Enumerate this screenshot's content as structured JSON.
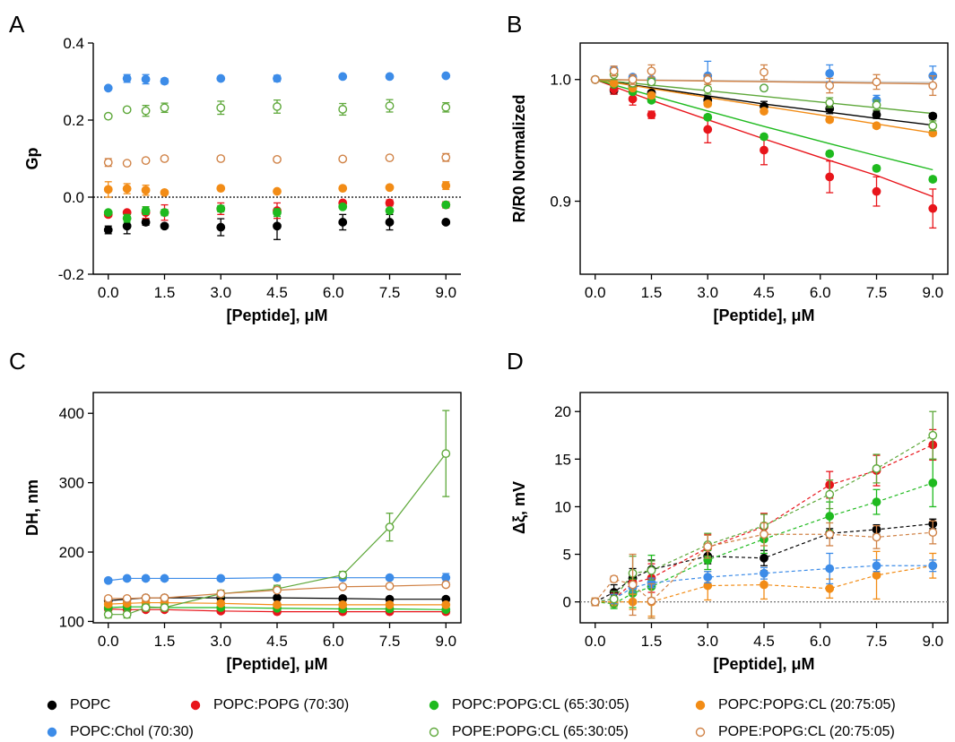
{
  "legend": [
    {
      "label": "POPC",
      "color": "#000000",
      "filled": true
    },
    {
      "label": "POPC:POPG (70:30)",
      "color": "#e8151b",
      "filled": true
    },
    {
      "label": "POPC:POPG:CL (65:30:05)",
      "color": "#1fba1f",
      "filled": true
    },
    {
      "label": "POPC:POPG:CL (20:75:05)",
      "color": "#f28c16",
      "filled": true
    },
    {
      "label": "POPC:Chol (70:30)",
      "color": "#3d8ce8",
      "filled": true
    },
    {
      "label": "POPE:POPG:CL (65:30:05)",
      "color": "#5ea83a",
      "filled": false
    },
    {
      "label": "POPE:POPG:CL (20:75:05)",
      "color": "#d08246",
      "filled": false
    }
  ],
  "chart_data": [
    {
      "panel": "A",
      "type": "scatter",
      "xlabel": "[Peptide], μM",
      "ylabel": "Gp",
      "x": [
        0.0,
        0.5,
        1.0,
        1.5,
        3.0,
        4.5,
        6.25,
        7.5,
        9.0
      ],
      "xticks": [
        "0.0",
        "1.5",
        "3.0",
        "4.5",
        "6.0",
        "7.5",
        "9.0"
      ],
      "xtick_values": [
        0.0,
        1.5,
        3.0,
        4.5,
        6.0,
        7.5,
        9.0
      ],
      "yticks": [
        "-0.2",
        "0.0",
        "0.2",
        "0.4"
      ],
      "ytick_values": [
        -0.2,
        0.0,
        0.2,
        0.4
      ],
      "xlim": [
        -0.4,
        9.4
      ],
      "ylim": [
        -0.2,
        0.4
      ],
      "reference_line": 0.0,
      "connect": "none",
      "series": [
        {
          "legend": 0,
          "y": [
            -0.085,
            -0.075,
            -0.065,
            -0.075,
            -0.078,
            -0.075,
            -0.065,
            -0.065,
            -0.065
          ],
          "err": [
            0.01,
            0.02,
            0.008,
            0.006,
            0.022,
            0.035,
            0.02,
            0.02,
            0.005
          ]
        },
        {
          "legend": 1,
          "y": [
            -0.045,
            -0.04,
            -0.04,
            -0.04,
            -0.03,
            -0.035,
            -0.015,
            -0.015,
            -0.02
          ],
          "err": [
            0.005,
            0.005,
            0.015,
            0.02,
            0.015,
            0.02,
            0.005,
            0.008,
            0.008
          ]
        },
        {
          "legend": 2,
          "y": [
            -0.04,
            -0.055,
            -0.035,
            -0.04,
            -0.03,
            -0.04,
            -0.025,
            -0.035,
            -0.02
          ],
          "err": [
            0.003,
            0.01,
            0.01,
            0.008,
            0.008,
            0.01,
            0.005,
            0.005,
            0.005
          ]
        },
        {
          "legend": 3,
          "y": [
            0.02,
            0.022,
            0.018,
            0.012,
            0.023,
            0.015,
            0.023,
            0.025,
            0.03
          ],
          "err": [
            0.02,
            0.013,
            0.013,
            0.005,
            0.004,
            0.004,
            0.004,
            0.004,
            0.01
          ]
        },
        {
          "legend": 4,
          "y": [
            0.283,
            0.308,
            0.306,
            0.301,
            0.308,
            0.308,
            0.313,
            0.313,
            0.315
          ],
          "err": [
            0.004,
            0.01,
            0.012,
            0.007,
            0.004,
            0.008,
            0.004,
            0.004,
            0.004
          ]
        },
        {
          "legend": 5,
          "y": [
            0.21,
            0.227,
            0.224,
            0.232,
            0.232,
            0.235,
            0.228,
            0.237,
            0.233
          ],
          "err": [
            0.004,
            0.004,
            0.014,
            0.012,
            0.017,
            0.017,
            0.015,
            0.016,
            0.012
          ]
        },
        {
          "legend": 6,
          "y": [
            0.09,
            0.088,
            0.095,
            0.1,
            0.1,
            0.098,
            0.099,
            0.102,
            0.103
          ],
          "err": [
            0.01,
            0.004,
            0.004,
            0.004,
            0.004,
            0.004,
            0.004,
            0.004,
            0.01
          ]
        }
      ]
    },
    {
      "panel": "B",
      "type": "line",
      "xlabel": "[Peptide], μM",
      "ylabel": "R/R0 Normalized",
      "x": [
        0.0,
        0.5,
        1.0,
        1.5,
        3.0,
        4.5,
        6.25,
        7.5,
        9.0
      ],
      "xticks": [
        "0.0",
        "1.5",
        "3.0",
        "4.5",
        "6.0",
        "7.5",
        "9.0"
      ],
      "xtick_values": [
        0.0,
        1.5,
        3.0,
        4.5,
        6.0,
        7.5,
        9.0
      ],
      "yticks": [
        "0.9",
        "1.0"
      ],
      "ytick_values": [
        0.9,
        1.0
      ],
      "xlim": [
        -0.4,
        9.4
      ],
      "ylim": [
        0.84,
        1.03
      ],
      "connect": "fit",
      "series": [
        {
          "legend": 0,
          "y": [
            1.0,
            0.991,
            0.994,
            0.989,
            0.983,
            0.978,
            0.976,
            0.971,
            0.97
          ],
          "err": [
            0.001,
            0.003,
            0.002,
            0.002,
            0.003,
            0.004,
            0.004,
            0.003,
            0.002
          ],
          "fit": [
            1.0,
            0.998,
            0.9955,
            0.9933,
            0.9866,
            0.9799,
            0.9731,
            0.9681,
            0.9625
          ]
        },
        {
          "legend": 1,
          "y": [
            1.0,
            0.992,
            0.984,
            0.971,
            0.959,
            0.942,
            0.92,
            0.908,
            0.894
          ],
          "err": [
            0.001,
            0.004,
            0.005,
            0.003,
            0.011,
            0.012,
            0.013,
            0.012,
            0.016
          ],
          "fit": [
            1.0,
            0.9942,
            0.9885,
            0.9829,
            0.967,
            0.9512,
            0.9335,
            0.9212,
            0.9038
          ]
        },
        {
          "legend": 2,
          "y": [
            1.0,
            0.996,
            0.99,
            0.983,
            0.969,
            0.953,
            0.939,
            0.927,
            0.918
          ],
          "err": [
            0.001,
            0.002,
            0.002,
            0.002,
            0.002,
            0.002,
            0.002,
            0.002,
            0.002
          ],
          "fit": [
            1.0,
            0.9956,
            0.9912,
            0.9869,
            0.9741,
            0.9615,
            0.9473,
            0.9374,
            0.9258
          ]
        },
        {
          "legend": 3,
          "y": [
            1.0,
            0.997,
            0.993,
            0.987,
            0.98,
            0.974,
            0.967,
            0.962,
            0.956
          ],
          "err": [
            0.001,
            0.002,
            0.002,
            0.002,
            0.002,
            0.002,
            0.002,
            0.002,
            0.002
          ],
          "fit": [
            1.0,
            0.9975,
            0.9951,
            0.9926,
            0.9853,
            0.978,
            0.9697,
            0.9635,
            0.9561
          ]
        },
        {
          "legend": 4,
          "y": [
            1.0,
            1.008,
            1.002,
            1.0,
            1.003,
            0.993,
            1.005,
            0.983,
            1.003
          ],
          "err": [
            0.001,
            0.002,
            0.002,
            0.002,
            0.012,
            0.002,
            0.007,
            0.004,
            0.008
          ],
          "fit": [
            1.0,
            0.9999,
            0.9997,
            0.9996,
            0.9992,
            0.9988,
            0.9984,
            0.998,
            0.9976
          ]
        },
        {
          "legend": 5,
          "y": [
            1.0,
            1.004,
            0.997,
            0.998,
            0.992,
            0.993,
            0.981,
            0.979,
            0.962
          ],
          "err": [
            0.001,
            0.004,
            0.003,
            0.003,
            0.004,
            0.002,
            0.004,
            0.004,
            0.004
          ],
          "fit": [
            1.0,
            0.9985,
            0.997,
            0.9954,
            0.9908,
            0.9861,
            0.9807,
            0.9768,
            0.9721
          ]
        },
        {
          "legend": 6,
          "y": [
            1.0,
            1.007,
            1.0,
            1.007,
            1.0,
            1.006,
            0.995,
            0.998,
            0.995
          ],
          "err": [
            0.001,
            0.004,
            0.004,
            0.005,
            0.004,
            0.006,
            0.006,
            0.006,
            0.008
          ],
          "fit": [
            1.0,
            0.9998,
            0.9996,
            0.9994,
            0.9988,
            0.9982,
            0.9975,
            0.997,
            0.9964
          ]
        }
      ]
    },
    {
      "panel": "C",
      "type": "line",
      "xlabel": "[Peptide], μM",
      "ylabel": "DH, nm",
      "x": [
        0.0,
        0.5,
        1.0,
        1.5,
        3.0,
        4.5,
        6.25,
        7.5,
        9.0
      ],
      "xticks": [
        "0.0",
        "1.5",
        "3.0",
        "4.5",
        "6.0",
        "7.5",
        "9.0"
      ],
      "xtick_values": [
        0.0,
        1.5,
        3.0,
        4.5,
        6.0,
        7.5,
        9.0
      ],
      "yticks": [
        "100",
        "200",
        "300",
        "400"
      ],
      "ytick_values": [
        100,
        200,
        300,
        400
      ],
      "xlim": [
        -0.4,
        9.4
      ],
      "ylim": [
        98,
        430
      ],
      "connect": "straight",
      "series": [
        {
          "legend": 0,
          "y": [
            130,
            132,
            134,
            134,
            134,
            134,
            133,
            132,
            132
          ],
          "err": [
            3,
            3,
            3,
            3,
            3,
            3,
            3,
            3,
            3
          ]
        },
        {
          "legend": 1,
          "y": [
            118,
            117,
            117,
            117,
            115,
            114,
            114,
            114,
            114
          ],
          "err": [
            3,
            3,
            3,
            3,
            3,
            3,
            3,
            3,
            3
          ]
        },
        {
          "legend": 2,
          "y": [
            120,
            121,
            121,
            120,
            120,
            119,
            118,
            118,
            117
          ],
          "err": [
            3,
            3,
            3,
            3,
            3,
            3,
            3,
            3,
            3
          ]
        },
        {
          "legend": 3,
          "y": [
            125,
            126,
            127,
            127,
            126,
            124,
            124,
            124,
            124
          ],
          "err": [
            3,
            3,
            3,
            3,
            3,
            3,
            3,
            3,
            3
          ]
        },
        {
          "legend": 4,
          "y": [
            159,
            162,
            162,
            162,
            162,
            163,
            163,
            163,
            163
          ],
          "err": [
            3,
            3,
            3,
            3,
            3,
            3,
            3,
            3,
            6
          ]
        },
        {
          "legend": 5,
          "y": [
            110,
            110,
            120,
            120,
            140,
            147,
            167,
            236,
            342
          ],
          "err": [
            5,
            5,
            5,
            5,
            5,
            5,
            5,
            20,
            62
          ]
        },
        {
          "legend": 6,
          "y": [
            133,
            133,
            134,
            134,
            140,
            145,
            150,
            151,
            153
          ],
          "err": [
            3,
            3,
            3,
            3,
            3,
            3,
            3,
            3,
            3
          ]
        }
      ]
    },
    {
      "panel": "D",
      "type": "line",
      "xlabel": "[Peptide], μM",
      "ylabel": "Δξ, mV",
      "x": [
        0.0,
        0.5,
        1.0,
        1.5,
        3.0,
        4.5,
        6.25,
        7.5,
        9.0
      ],
      "xticks": [
        "0.0",
        "1.5",
        "3.0",
        "4.5",
        "6.0",
        "7.5",
        "9.0"
      ],
      "xtick_values": [
        0.0,
        1.5,
        3.0,
        4.5,
        6.0,
        7.5,
        9.0
      ],
      "yticks": [
        "0",
        "5",
        "10",
        "15",
        "20"
      ],
      "ytick_values": [
        0,
        5,
        10,
        15,
        20
      ],
      "xlim": [
        -0.4,
        9.4
      ],
      "ylim": [
        -2.2,
        22
      ],
      "reference_line": 0,
      "connect": "dashed",
      "series": [
        {
          "legend": 0,
          "y": [
            0,
            1.0,
            2.5,
            3.4,
            4.8,
            4.6,
            7.2,
            7.6,
            8.2
          ],
          "err": [
            0.3,
            0.8,
            1.0,
            1.0,
            0.8,
            0.8,
            0.5,
            0.5,
            0.5
          ]
        },
        {
          "legend": 1,
          "y": [
            0,
            0.3,
            2.0,
            2.5,
            5.7,
            7.9,
            12.3,
            13.8,
            16.5
          ],
          "err": [
            0.3,
            0.6,
            1.0,
            1.5,
            1.4,
            1.4,
            1.4,
            1.6,
            1.6
          ]
        },
        {
          "legend": 2,
          "y": [
            0,
            -0.2,
            0.9,
            1.6,
            4.4,
            6.6,
            9.0,
            10.5,
            12.5
          ],
          "err": [
            0.3,
            0.5,
            1.5,
            3.3,
            1.0,
            1.5,
            1.5,
            1.3,
            2.5
          ]
        },
        {
          "legend": 3,
          "y": [
            0,
            0,
            0,
            0,
            1.7,
            1.8,
            1.4,
            2.8,
            3.8
          ],
          "err": [
            0.4,
            0.5,
            0.8,
            1.5,
            1.5,
            1.5,
            1.0,
            2.5,
            1.3
          ]
        },
        {
          "legend": 4,
          "y": [
            0,
            0.3,
            1.5,
            2.0,
            2.6,
            3.0,
            3.5,
            3.8,
            3.8
          ],
          "err": [
            0.3,
            0.5,
            0.5,
            0.5,
            0.6,
            0.6,
            1.6,
            0.6,
            0.6
          ]
        },
        {
          "legend": 5,
          "y": [
            0,
            0.3,
            3.0,
            3.3,
            6.0,
            8.0,
            11.3,
            14.0,
            17.5
          ],
          "err": [
            0.3,
            0.8,
            1.8,
            1.0,
            1.2,
            1.2,
            1.5,
            1.5,
            2.5
          ]
        },
        {
          "legend": 6,
          "y": [
            0,
            2.4,
            1.8,
            0.1,
            5.8,
            7.1,
            7.1,
            6.8,
            7.3
          ],
          "err": [
            0.4,
            0.3,
            3.2,
            1.8,
            1.2,
            1.2,
            1.2,
            1.2,
            1.2
          ]
        }
      ]
    }
  ]
}
